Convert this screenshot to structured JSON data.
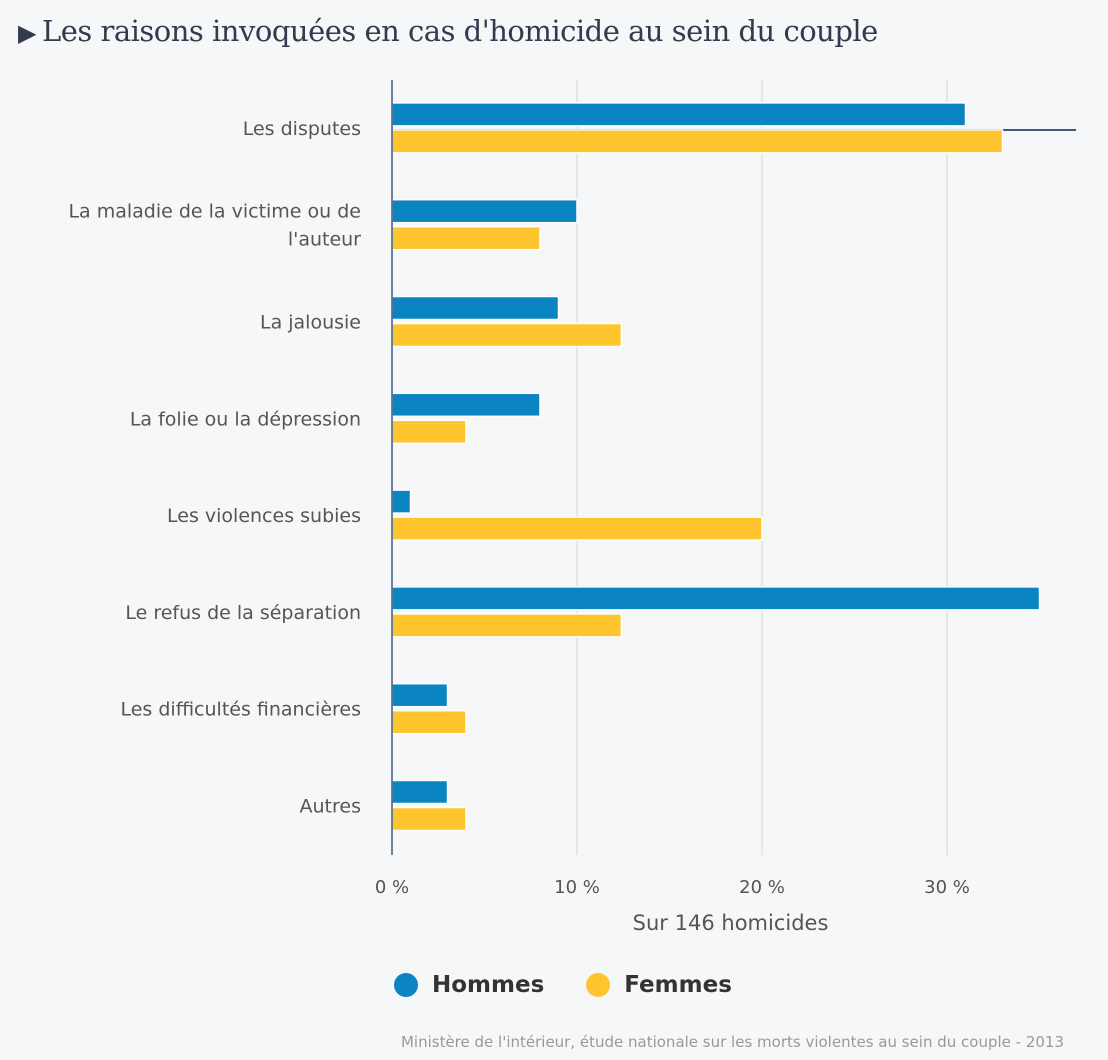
{
  "title": "Les raisons invoquées en cas d'homicide au sein du couple",
  "title_icon": "triangle-right-icon",
  "source": "Ministère de l'intérieur, étude nationale sur les morts violentes au sein du couple - 2013",
  "colors": {
    "hommes": "#0a85c2",
    "femmes": "#fec52e",
    "axis": "#3a5a80",
    "grid": "#e0e0e0"
  },
  "chart_data": {
    "type": "bar",
    "orientation": "horizontal",
    "categories": [
      [
        "Les disputes"
      ],
      [
        "La maladie de la victime ou de",
        "l'auteur"
      ],
      [
        "La jalousie"
      ],
      [
        "La folie ou la dépression"
      ],
      [
        "Les violences subies"
      ],
      [
        "Le refus de la séparation"
      ],
      [
        "Les difficultés financières"
      ],
      [
        "Autres"
      ]
    ],
    "series": [
      {
        "name": "Hommes",
        "values": [
          31,
          10,
          9,
          8,
          1,
          35,
          3,
          3
        ]
      },
      {
        "name": "Femmes",
        "values": [
          33,
          8,
          12.4,
          4,
          20,
          12.4,
          4,
          4
        ]
      }
    ],
    "xticks": [
      "0 %",
      "10 %",
      "20 %",
      "30 %"
    ],
    "xtick_values": [
      0,
      10,
      20,
      30
    ],
    "xlabel": "Sur 146 homicides",
    "xlim": [
      0,
      37
    ],
    "grid": true,
    "legend": "bottom-center"
  }
}
